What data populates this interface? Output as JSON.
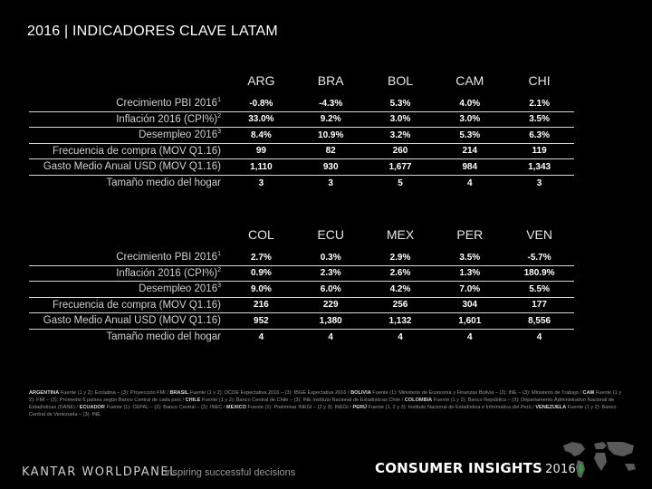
{
  "title": "2016 | INDICADORES CLAVE LATAM",
  "labels": [
    {
      "text": "Crecimiento PBI 2016",
      "sup": "1"
    },
    {
      "text": "Inflación 2016 (CPI%)",
      "sup": "2"
    },
    {
      "text": "Desempleo 2016",
      "sup": "3"
    },
    {
      "text": "Frecuencia de compra (MOV Q1.16)",
      "sup": ""
    },
    {
      "text": "Gasto Medio Anual USD (MOV Q1.16)",
      "sup": ""
    },
    {
      "text": "Tamaño medio del hogar",
      "sup": ""
    }
  ],
  "table1": {
    "countries": [
      "ARG",
      "BRA",
      "BOL",
      "CAM",
      "CHI"
    ],
    "rows": [
      [
        "-0.8%",
        "-4.3%",
        "5.3%",
        "4.0%",
        "2.1%"
      ],
      [
        "33.0%",
        "9.2%",
        "3.0%",
        "3.0%",
        "3.5%"
      ],
      [
        "8.4%",
        "10.9%",
        "3.2%",
        "5.3%",
        "6.3%"
      ],
      [
        "99",
        "82",
        "260",
        "214",
        "119"
      ],
      [
        "1,110",
        "930",
        "1,677",
        "984",
        "1,343"
      ],
      [
        "3",
        "3",
        "5",
        "4",
        "3"
      ]
    ]
  },
  "table2": {
    "countries": [
      "COL",
      "ECU",
      "MEX",
      "PER",
      "VEN"
    ],
    "rows": [
      [
        "2.7%",
        "0.3%",
        "2.9%",
        "3.5%",
        "-5.7%"
      ],
      [
        "0.9%",
        "2.3%",
        "2.6%",
        "1.3%",
        "180.9%"
      ],
      [
        "9.0%",
        "6.0%",
        "4.2%",
        "7.0%",
        "5.5%"
      ],
      [
        "216",
        "229",
        "256",
        "304",
        "177"
      ],
      [
        "952",
        "1,380",
        "1,132",
        "1,601",
        "8,556"
      ],
      [
        "4",
        "4",
        "4",
        "4",
        "4"
      ]
    ]
  },
  "sources": [
    {
      "country": "ARGENTINA",
      "text": " Fuente (1 y 2): Ecolatina – (3): Proyección FMI / "
    },
    {
      "country": "BRASIL",
      "text": " Fuente (1 y 2): OCDE Expectativa 2016 – (3): IBGE Expectativa 2016 / "
    },
    {
      "country": "BOLIVIA",
      "text": " Fuente (1): Ministerio de Economía y Finanzas Bolivia – (2): INE – (3): Ministerio de Trabajo / "
    },
    {
      "country": "CAM",
      "text": " Fuente (1 y 2): FMI – (3): Promedio 6 países según Banco Central de cada país / "
    },
    {
      "country": "CHILE",
      "text": " Fuente (1 y 2): Banco Central de Chile – (3): INE Instituto Nacional de Estadísticas Chile / "
    },
    {
      "country": "COLOMBIA",
      "text": " Fuente (1 y 2): Banco República – (3): Departamento Administrativo Nacional de Estadísticas (DANE) / "
    },
    {
      "country": "ECUADOR",
      "text": " Fuente (1): CEPAL – (2): Banco Central – (3): INEC / "
    },
    {
      "country": "MEXICO",
      "text": " Fuente (1): Preliminar INEGI – (2 y 3): INEGI / "
    },
    {
      "country": "PERÚ",
      "text": " Fuente (1, 2 y 3): Instituto Nacional de Estadística e Informática del Perú / "
    },
    {
      "country": "VENEZUELA",
      "text": " Fuente (1 y 2): Banco Central de Venezuela – (3): INE"
    }
  ],
  "footer": {
    "logo": "KANTAR WORLDPANEL",
    "tagline": "inspiring successful decisions",
    "brand": "CONSUMER INSIGHTS",
    "year": "2016"
  }
}
